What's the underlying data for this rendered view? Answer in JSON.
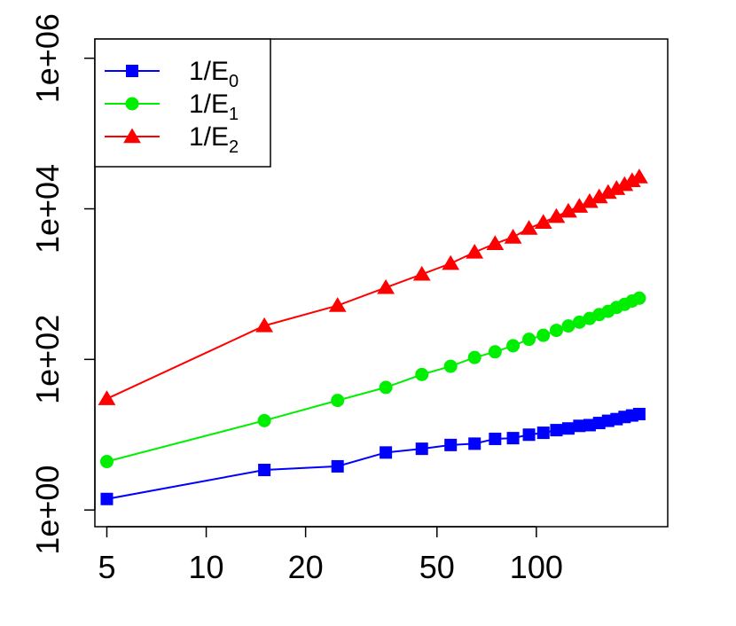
{
  "chart_data": {
    "type": "line",
    "x_scale": "log",
    "y_scale": "log",
    "xlim": [
      4.6,
      250
    ],
    "ylim": [
      0.6,
      1800000
    ],
    "x_ticks": [
      5,
      10,
      20,
      50,
      100
    ],
    "x_tick_labels": [
      "5",
      "10",
      "20",
      "50",
      "100"
    ],
    "y_ticks": [
      1,
      100,
      10000,
      1000000
    ],
    "y_tick_labels": [
      "1e+00",
      "1e+02",
      "1e+04",
      "1e+06"
    ],
    "grid": false,
    "legend_position": "top-left",
    "series": [
      {
        "name": "1/E0",
        "legend_prefix": "1/E",
        "legend_sub": "0",
        "color": "#0000ff",
        "marker": "square",
        "x": [
          5,
          15,
          25,
          35,
          45,
          55,
          65,
          75,
          85,
          95,
          105,
          115,
          125,
          135,
          145,
          155,
          165,
          175,
          185,
          195,
          205
        ],
        "y": [
          1.4,
          3.4,
          3.8,
          5.8,
          6.5,
          7.3,
          7.6,
          8.8,
          9.0,
          10.0,
          10.6,
          11.5,
          12.1,
          13.1,
          13.4,
          14.3,
          15.3,
          16.1,
          17.2,
          18.0,
          18.8
        ]
      },
      {
        "name": "1/E1",
        "legend_prefix": "1/E",
        "legend_sub": "1",
        "color": "#00ee00",
        "marker": "circle",
        "x": [
          5,
          15,
          25,
          35,
          45,
          55,
          65,
          75,
          85,
          95,
          105,
          115,
          125,
          135,
          145,
          155,
          165,
          175,
          185,
          195,
          205
        ],
        "y": [
          4.4,
          15.4,
          28.5,
          42.5,
          63.0,
          81.0,
          106,
          126,
          152,
          185,
          209,
          243,
          278,
          312,
          350,
          394,
          435,
          490,
          538,
          596,
          650
        ]
      },
      {
        "name": "1/E2",
        "legend_prefix": "1/E",
        "legend_sub": "2",
        "color": "#ff0000",
        "marker": "triangle",
        "x": [
          5,
          15,
          25,
          35,
          45,
          55,
          65,
          75,
          85,
          95,
          105,
          115,
          125,
          135,
          145,
          155,
          165,
          175,
          185,
          195,
          205
        ],
        "y": [
          30,
          280,
          520,
          900,
          1350,
          1880,
          2650,
          3450,
          4200,
          5500,
          6600,
          7900,
          9300,
          10800,
          12500,
          14400,
          16500,
          18600,
          21000,
          23600,
          26500
        ]
      }
    ]
  }
}
